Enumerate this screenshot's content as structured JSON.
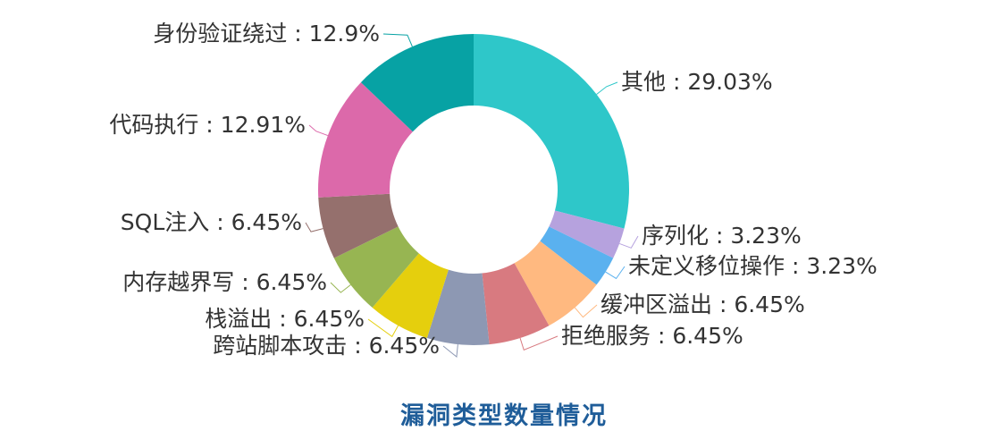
{
  "chart_data": {
    "type": "pie",
    "variant": "donut",
    "title": "漏洞类型数量情况",
    "label_format": "{name} : {percent}%",
    "slices": [
      {
        "name": "其他",
        "percent": "29.03",
        "value": 29.03,
        "color": "#2ec7c9"
      },
      {
        "name": "序列化",
        "percent": "3.23",
        "value": 3.23,
        "color": "#b6a2de"
      },
      {
        "name": "未定义移位操作",
        "percent": "3.23",
        "value": 3.23,
        "color": "#5ab1ef"
      },
      {
        "name": "缓冲区溢出",
        "percent": "6.45",
        "value": 6.45,
        "color": "#ffb980"
      },
      {
        "name": "拒绝服务",
        "percent": "6.45",
        "value": 6.45,
        "color": "#d87a80"
      },
      {
        "name": "跨站脚本攻击",
        "percent": "6.45",
        "value": 6.45,
        "color": "#8d98b3"
      },
      {
        "name": "栈溢出",
        "percent": "6.45",
        "value": 6.45,
        "color": "#e5cf0d"
      },
      {
        "name": "内存越界写",
        "percent": "6.45",
        "value": 6.45,
        "color": "#97b552"
      },
      {
        "name": "SQL注入",
        "percent": "6.45",
        "value": 6.45,
        "color": "#95706d"
      },
      {
        "name": "代码执行",
        "percent": "12.91",
        "value": 12.91,
        "color": "#dc69aa"
      },
      {
        "name": "身份验证绕过",
        "percent": "12.9",
        "value": 12.9,
        "color": "#07a2a4"
      }
    ],
    "title_color": "#1f5d99"
  }
}
